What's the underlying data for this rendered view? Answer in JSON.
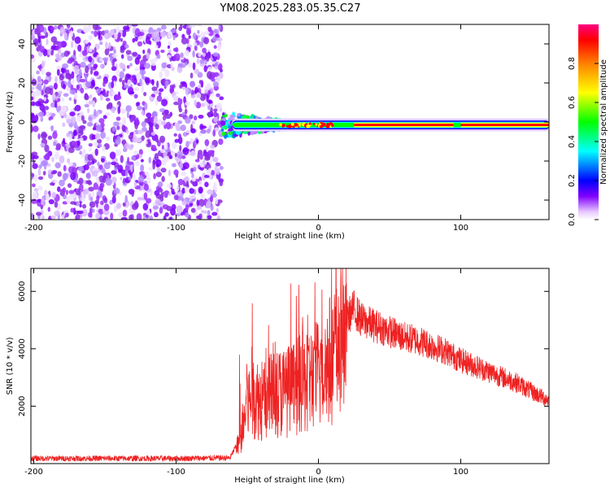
{
  "title": "YM08.2025.283.05.35.C27",
  "chart_data": [
    {
      "type": "heatmap",
      "xlabel": "Height of straight line (km)",
      "ylabel": "Frequency (Hz)",
      "xlim": [
        -202,
        162
      ],
      "ylim": [
        -50,
        50
      ],
      "xticks": [
        -200,
        -100,
        0,
        100
      ],
      "xtick_labels": [
        "-200",
        "-100",
        "0",
        "100"
      ],
      "yticks": [
        -40,
        -20,
        0,
        20,
        40
      ],
      "ytick_labels": [
        "-40",
        "-20",
        "0",
        "20",
        "40"
      ],
      "noise_region_x": [
        -202,
        -68
      ],
      "transition_region_x": [
        -68,
        -20
      ],
      "band_center_hz": -1.5,
      "colorbar": {
        "label": "Normalized spectral amplitude",
        "range": [
          0.0,
          1.0
        ],
        "ticks": [
          0.0,
          0.2,
          0.4,
          0.6,
          0.8
        ],
        "tick_labels": [
          "0.0",
          "0.2",
          "0.4",
          "0.6",
          "0.8"
        ],
        "colors": [
          "#ffffff",
          "#c080ff",
          "#8000ff",
          "#0000ff",
          "#00ffff",
          "#00ff00",
          "#ffff00",
          "#ff8000",
          "#ff0000",
          "#ff0080"
        ]
      }
    },
    {
      "type": "line",
      "xlabel": "Height of straight line (km)",
      "ylabel": "SNR (10 * v/v)",
      "xlim": [
        -202,
        162
      ],
      "ylim": [
        0,
        6800
      ],
      "xticks": [
        -200,
        -100,
        0,
        100
      ],
      "xtick_labels": [
        "-200",
        "-100",
        "0",
        "100"
      ],
      "yticks": [
        2000,
        4000,
        6000
      ],
      "ytick_labels": [
        "2000",
        "4000",
        "6000"
      ],
      "color": "#ee2222",
      "series": [
        {
          "name": "SNR",
          "x": [
            -202,
            -150,
            -100,
            -62,
            -55,
            -50,
            -45,
            -40,
            -30,
            -20,
            -10,
            0,
            10,
            20,
            25,
            30,
            40,
            50,
            60,
            70,
            80,
            90,
            100,
            110,
            120,
            130,
            140,
            150,
            162
          ],
          "y": [
            180,
            180,
            180,
            200,
            900,
            2500,
            2800,
            2500,
            2900,
            3000,
            3300,
            3700,
            4400,
            5100,
            5400,
            5000,
            4800,
            4600,
            4400,
            4300,
            4100,
            3900,
            3600,
            3400,
            3200,
            3000,
            2800,
            2500,
            2200
          ]
        }
      ]
    }
  ]
}
